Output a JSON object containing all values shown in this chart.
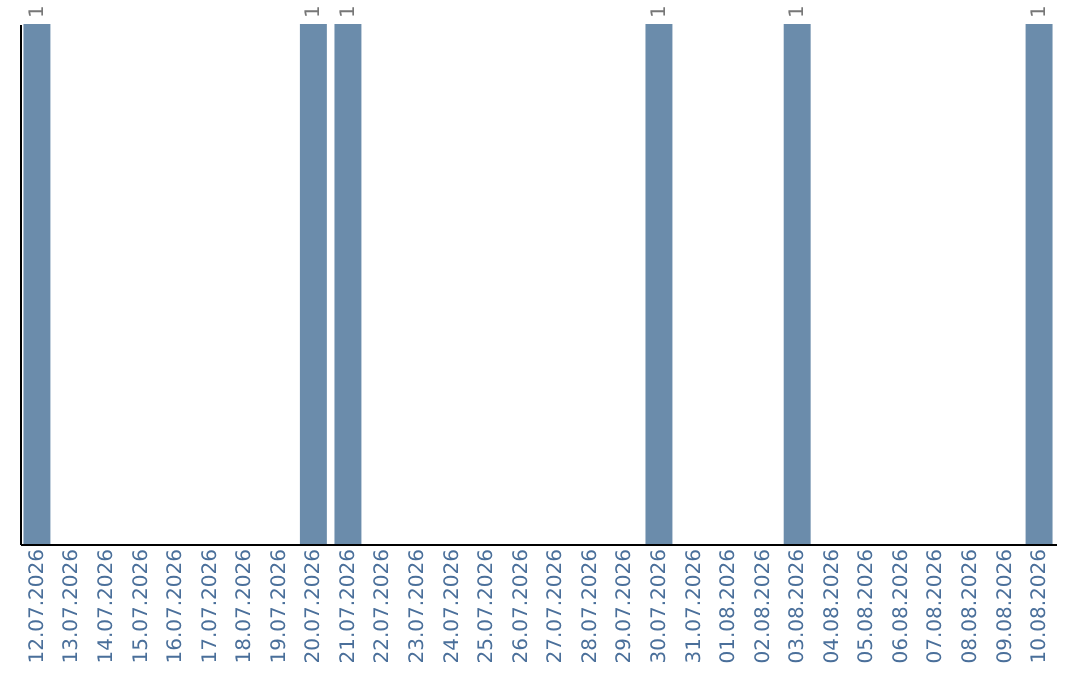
{
  "chart_data": {
    "type": "bar",
    "categories": [
      "12.07.2026",
      "13.07.2026",
      "14.07.2026",
      "15.07.2026",
      "16.07.2026",
      "17.07.2026",
      "18.07.2026",
      "19.07.2026",
      "20.07.2026",
      "21.07.2026",
      "22.07.2026",
      "23.07.2026",
      "24.07.2026",
      "25.07.2026",
      "26.07.2026",
      "27.07.2026",
      "28.07.2026",
      "29.07.2026",
      "30.07.2026",
      "31.07.2026",
      "01.08.2026",
      "02.08.2026",
      "03.08.2026",
      "04.08.2026",
      "05.08.2026",
      "06.08.2026",
      "07.08.2026",
      "08.08.2026",
      "09.08.2026",
      "10.08.2026"
    ],
    "values": [
      1,
      null,
      null,
      null,
      null,
      null,
      null,
      null,
      1,
      1,
      null,
      null,
      null,
      null,
      null,
      null,
      null,
      null,
      1,
      null,
      null,
      null,
      1,
      null,
      null,
      null,
      null,
      null,
      null,
      1
    ],
    "color": "#6b8cab",
    "data_labels": true,
    "grid": false
  }
}
